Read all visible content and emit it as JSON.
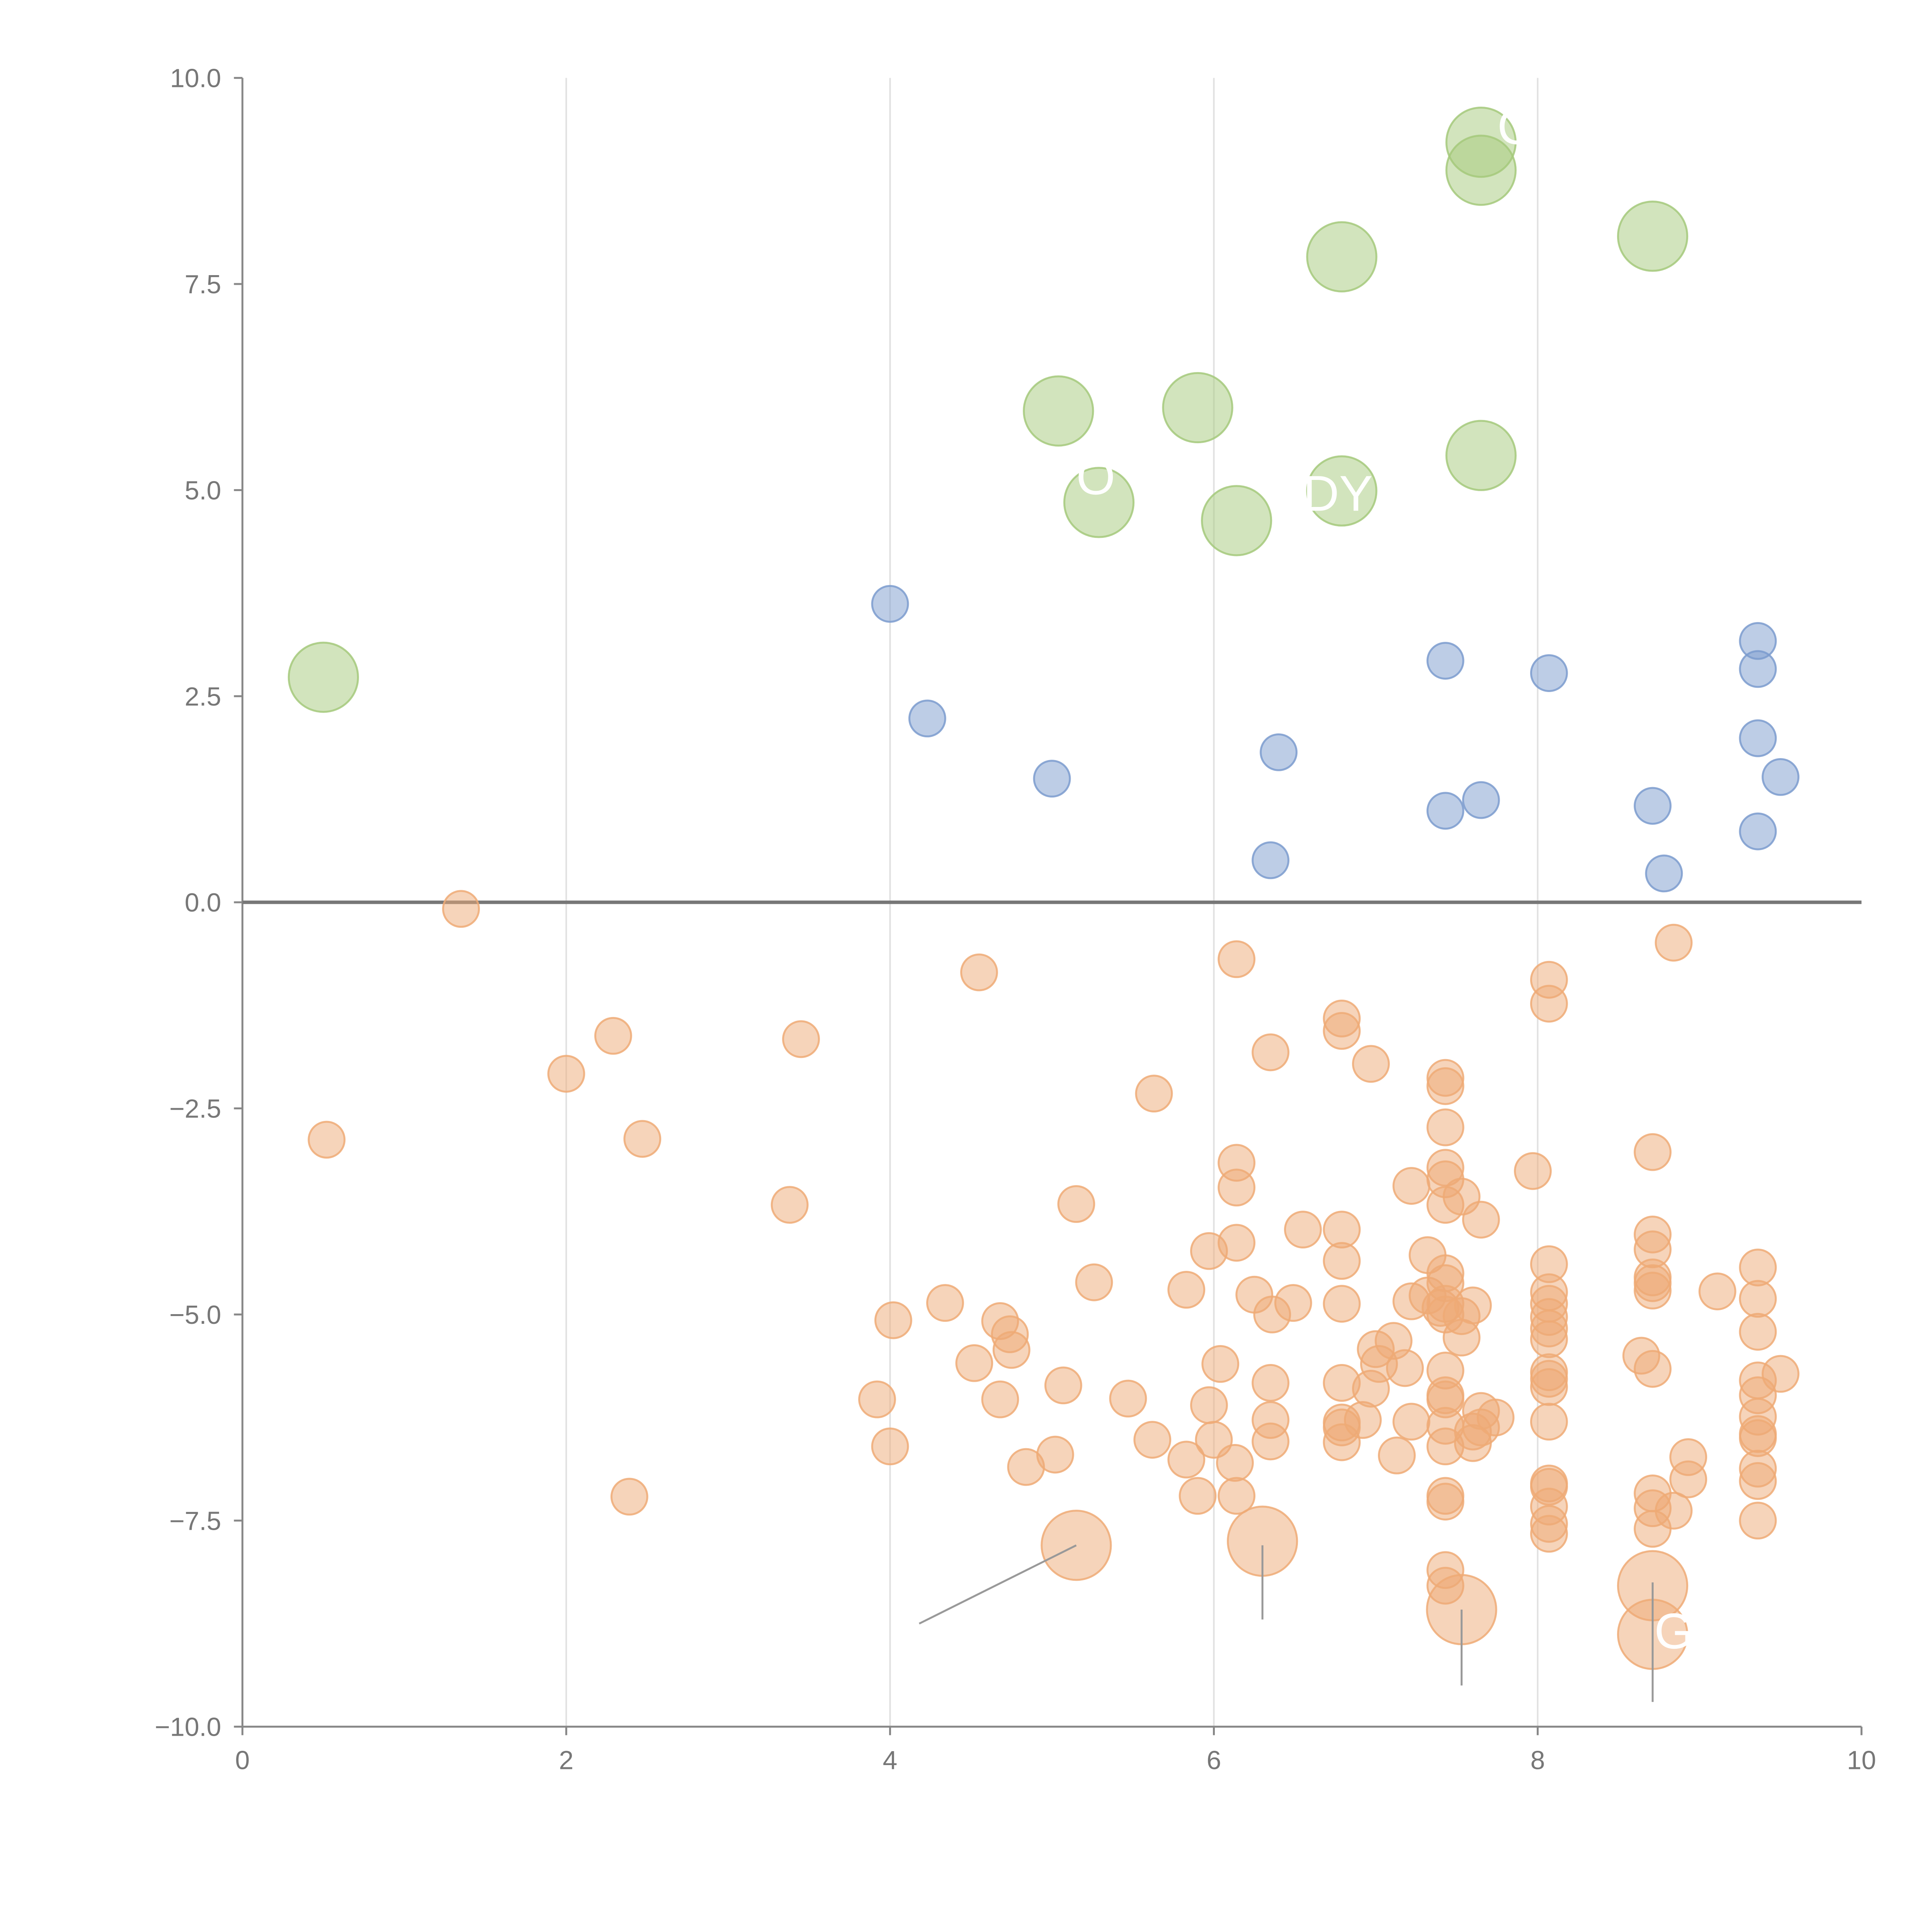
{
  "chart_data": {
    "type": "scatter",
    "title": "",
    "xlabel": "",
    "ylabel": "",
    "xlim": [
      0,
      10
    ],
    "ylim": [
      -10,
      10
    ],
    "x_ticks": [
      0,
      2,
      4,
      6,
      8,
      10
    ],
    "x_tick_labels": [
      "0",
      "2",
      "4",
      "6",
      "8",
      "10"
    ],
    "y_ticks": [
      10,
      7.5,
      5,
      2.5,
      0,
      -2.5,
      -5,
      -7.5,
      -10
    ],
    "y_tick_labels": [
      "10.0",
      "7.5",
      "5.0",
      "2.5",
      "0.0",
      "−2.5",
      "−5.0",
      "−7.5",
      "−10.0"
    ],
    "vertical_grid": true,
    "zero_line": true,
    "series": [
      {
        "name": "positive-large",
        "color": "#a5c97b",
        "size": "large",
        "points": [
          [
            7.65,
            9.22
          ],
          [
            7.65,
            8.88
          ],
          [
            6.79,
            7.83
          ],
          [
            8.71,
            8.08
          ],
          [
            5.04,
            5.96
          ],
          [
            5.9,
            6.0
          ],
          [
            7.65,
            5.42
          ],
          [
            6.79,
            4.99
          ],
          [
            5.29,
            4.85
          ],
          [
            6.14,
            4.63
          ],
          [
            0.5,
            2.73
          ]
        ]
      },
      {
        "name": "positive-small",
        "color": "#7b9bce",
        "size": "small",
        "points": [
          [
            4.0,
            3.62
          ],
          [
            4.23,
            2.23
          ],
          [
            5.0,
            1.5
          ],
          [
            6.4,
            1.82
          ],
          [
            6.35,
            0.51
          ],
          [
            7.43,
            2.93
          ],
          [
            7.43,
            1.11
          ],
          [
            7.65,
            1.24
          ],
          [
            8.07,
            2.78
          ],
          [
            8.71,
            1.17
          ],
          [
            8.78,
            0.35
          ],
          [
            9.36,
            3.17
          ],
          [
            9.36,
            2.83
          ],
          [
            9.36,
            1.99
          ],
          [
            9.5,
            1.52
          ],
          [
            9.36,
            0.86
          ]
        ]
      },
      {
        "name": "negative",
        "color": "#eeaa76",
        "size": "small",
        "points": [
          [
            1.35,
            -0.08
          ],
          [
            0.52,
            -2.88
          ],
          [
            2.0,
            -2.08
          ],
          [
            2.29,
            -1.62
          ],
          [
            2.47,
            -2.87
          ],
          [
            2.39,
            -7.21
          ],
          [
            3.45,
            -1.66
          ],
          [
            3.38,
            -3.67
          ],
          [
            4.55,
            -0.85
          ],
          [
            3.92,
            -6.03
          ],
          [
            4.02,
            -5.07
          ],
          [
            4.0,
            -6.6
          ],
          [
            4.34,
            -4.86
          ],
          [
            4.52,
            -5.59
          ],
          [
            4.68,
            -5.08
          ],
          [
            4.74,
            -5.24
          ],
          [
            4.75,
            -5.43
          ],
          [
            4.68,
            -6.03
          ],
          [
            4.84,
            -6.85
          ],
          [
            5.02,
            -6.7
          ],
          [
            5.07,
            -5.86
          ],
          [
            5.15,
            -3.66
          ],
          [
            5.26,
            -4.61
          ],
          [
            5.47,
            -6.02
          ],
          [
            5.63,
            -2.32
          ],
          [
            5.62,
            -6.52
          ],
          [
            5.83,
            -4.7
          ],
          [
            5.83,
            -6.76
          ],
          [
            5.9,
            -7.2
          ],
          [
            5.97,
            -4.23
          ],
          [
            5.97,
            -6.1
          ],
          [
            6.04,
            -5.6
          ],
          [
            6.0,
            -6.52
          ],
          [
            6.14,
            -0.69
          ],
          [
            6.14,
            -3.16
          ],
          [
            6.14,
            -3.46
          ],
          [
            6.14,
            -4.13
          ],
          [
            6.13,
            -6.8
          ],
          [
            6.14,
            -7.2
          ],
          [
            6.25,
            -4.76
          ],
          [
            6.35,
            -1.82
          ],
          [
            6.36,
            -5.0
          ],
          [
            6.35,
            -5.83
          ],
          [
            6.35,
            -6.28
          ],
          [
            6.35,
            -6.54
          ],
          [
            6.49,
            -4.86
          ],
          [
            6.55,
            -3.97
          ],
          [
            6.79,
            -1.41
          ],
          [
            6.79,
            -1.56
          ],
          [
            6.79,
            -3.97
          ],
          [
            6.79,
            -4.35
          ],
          [
            6.79,
            -4.87
          ],
          [
            6.79,
            -5.83
          ],
          [
            6.79,
            -6.31
          ],
          [
            6.79,
            -6.37
          ],
          [
            6.79,
            -6.55
          ],
          [
            6.92,
            -6.28
          ],
          [
            6.97,
            -1.96
          ],
          [
            6.97,
            -5.9
          ],
          [
            7.0,
            -5.42
          ],
          [
            7.02,
            -5.6
          ],
          [
            7.11,
            -5.32
          ],
          [
            7.13,
            -6.71
          ],
          [
            7.18,
            -5.65
          ],
          [
            7.22,
            -3.44
          ],
          [
            7.22,
            -6.3
          ],
          [
            7.22,
            -4.84
          ],
          [
            7.32,
            -4.28
          ],
          [
            7.32,
            -4.77
          ],
          [
            7.4,
            -4.92
          ],
          [
            7.43,
            -2.13
          ],
          [
            7.43,
            -2.23
          ],
          [
            7.43,
            -2.73
          ],
          [
            7.43,
            -3.22
          ],
          [
            7.43,
            -3.36
          ],
          [
            7.43,
            -3.67
          ],
          [
            7.43,
            -4.5
          ],
          [
            7.43,
            -4.62
          ],
          [
            7.43,
            -4.87
          ],
          [
            7.43,
            -5.0
          ],
          [
            7.43,
            -5.68
          ],
          [
            7.43,
            -5.98
          ],
          [
            7.43,
            -6.03
          ],
          [
            7.43,
            -6.35
          ],
          [
            7.43,
            -6.6
          ],
          [
            7.43,
            -7.2
          ],
          [
            7.43,
            -7.27
          ],
          [
            7.43,
            -8.1
          ],
          [
            7.43,
            -8.29
          ],
          [
            7.53,
            -3.57
          ],
          [
            7.53,
            -5.28
          ],
          [
            7.53,
            -5.02
          ],
          [
            7.6,
            -4.89
          ],
          [
            7.6,
            -6.42
          ],
          [
            7.6,
            -6.56
          ],
          [
            7.65,
            -3.85
          ],
          [
            7.65,
            -6.17
          ],
          [
            7.65,
            -6.37
          ],
          [
            7.74,
            -6.25
          ],
          [
            7.97,
            -3.26
          ],
          [
            8.07,
            -0.94
          ],
          [
            8.07,
            -1.23
          ],
          [
            8.07,
            -4.39
          ],
          [
            8.07,
            -4.73
          ],
          [
            8.07,
            -4.87
          ],
          [
            8.07,
            -5.03
          ],
          [
            8.07,
            -5.17
          ],
          [
            8.07,
            -5.3
          ],
          [
            8.07,
            -5.7
          ],
          [
            8.07,
            -5.78
          ],
          [
            8.07,
            -5.88
          ],
          [
            8.07,
            -6.3
          ],
          [
            8.07,
            -7.05
          ],
          [
            8.07,
            -7.09
          ],
          [
            8.07,
            -7.33
          ],
          [
            8.07,
            -7.54
          ],
          [
            8.07,
            -7.66
          ],
          [
            8.64,
            -5.5
          ],
          [
            8.71,
            -3.03
          ],
          [
            8.71,
            -4.03
          ],
          [
            8.71,
            -4.21
          ],
          [
            8.71,
            -4.55
          ],
          [
            8.71,
            -4.62
          ],
          [
            8.71,
            -4.71
          ],
          [
            8.71,
            -5.66
          ],
          [
            8.71,
            -7.17
          ],
          [
            8.71,
            -7.35
          ],
          [
            8.71,
            -7.6
          ],
          [
            8.84,
            -0.49
          ],
          [
            8.84,
            -7.38
          ],
          [
            8.93,
            -6.73
          ],
          [
            8.93,
            -7.0
          ],
          [
            9.11,
            -4.72
          ],
          [
            9.36,
            -4.43
          ],
          [
            9.36,
            -4.81
          ],
          [
            9.36,
            -5.21
          ],
          [
            9.36,
            -5.8
          ],
          [
            9.36,
            -5.98
          ],
          [
            9.36,
            -6.24
          ],
          [
            9.36,
            -6.45
          ],
          [
            9.36,
            -6.5
          ],
          [
            9.36,
            -6.87
          ],
          [
            9.36,
            -7.02
          ],
          [
            9.36,
            -7.5
          ],
          [
            9.5,
            -5.72
          ]
        ]
      },
      {
        "name": "negative-large",
        "color": "#eeaa76",
        "size": "large",
        "points": [
          [
            5.15,
            -7.8
          ],
          [
            6.3,
            -7.75
          ],
          [
            7.53,
            -8.58
          ],
          [
            8.71,
            -8.29
          ],
          [
            8.71,
            -8.88
          ]
        ]
      }
    ],
    "annotation_lines": [
      [
        [
          5.15,
          -7.8
        ],
        [
          4.18,
          -8.75
        ]
      ],
      [
        [
          6.3,
          -7.8
        ],
        [
          6.3,
          -8.7
        ]
      ],
      [
        [
          7.53,
          -8.58
        ],
        [
          7.53,
          -9.5
        ]
      ],
      [
        [
          8.71,
          -8.25
        ],
        [
          8.71,
          -9.7
        ]
      ]
    ],
    "annotations": [
      {
        "text": "C",
        "x": 7.75,
        "y": 9.2
      },
      {
        "text": "DY",
        "x": 6.55,
        "y": 4.75
      },
      {
        "text": "O",
        "x": 5.15,
        "y": 4.95
      },
      {
        "text": "G",
        "x": 8.72,
        "y": -9.05
      }
    ]
  }
}
